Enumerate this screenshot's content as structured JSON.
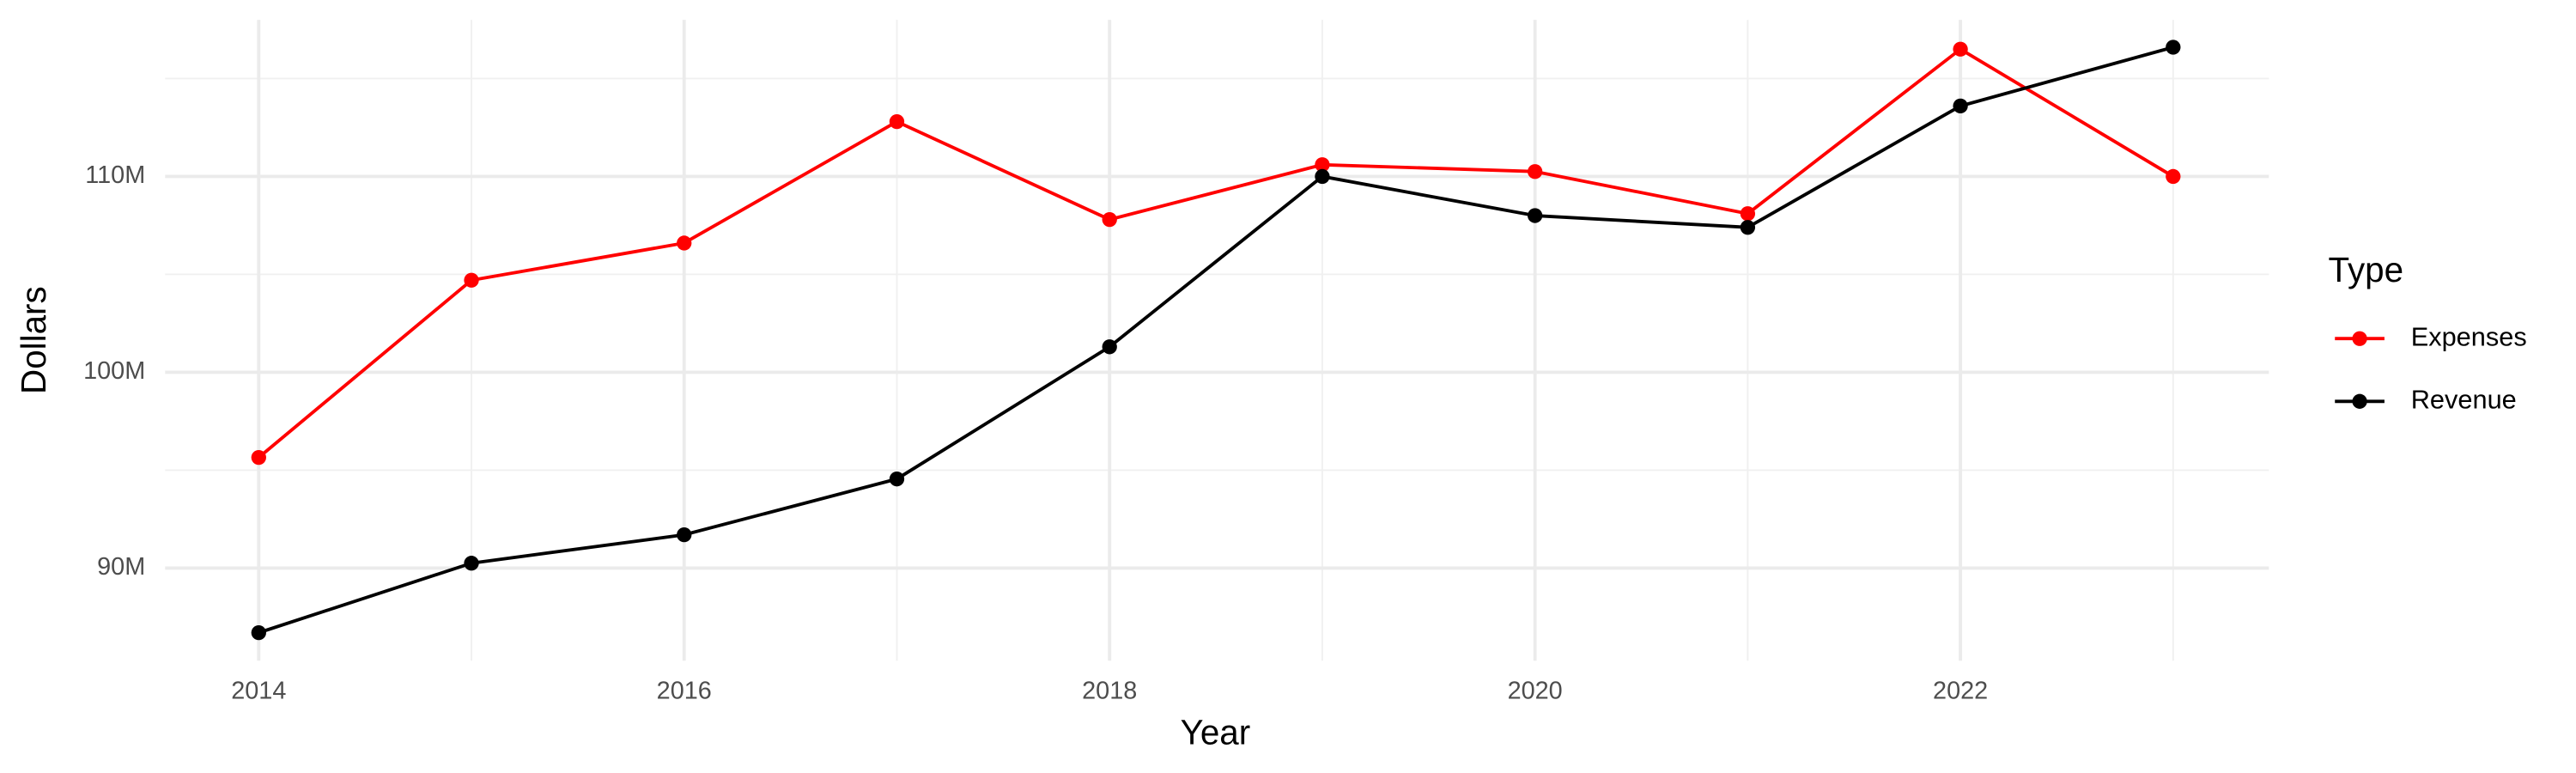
{
  "chart_data": {
    "type": "line",
    "x_label": "Year",
    "y_label": "Dollars",
    "legend_title": "Type",
    "x": [
      2014,
      2015,
      2016,
      2017,
      2018,
      2019,
      2020,
      2021,
      2022,
      2023
    ],
    "series": [
      {
        "name": "Expenses",
        "color": "#ff0000",
        "values": [
          95650000,
          104700000,
          106600000,
          112800000,
          107800000,
          110600000,
          110250000,
          108100000,
          116500000,
          110000000
        ]
      },
      {
        "name": "Revenue",
        "color": "#000000",
        "values": [
          86700000,
          90250000,
          91700000,
          94550000,
          101300000,
          110000000,
          108000000,
          107400000,
          113600000,
          116600000
        ]
      }
    ],
    "xlim": [
      2013.56,
      2023.45
    ],
    "xticks": [
      2014,
      2016,
      2018,
      2020,
      2022
    ],
    "ylim": [
      85270000,
      118000000
    ],
    "yticks": [
      {
        "value": 90000000,
        "label": "90M"
      },
      {
        "value": 100000000,
        "label": "100M"
      },
      {
        "value": 110000000,
        "label": "110M"
      }
    ],
    "grid": true,
    "legend_position": "right"
  }
}
